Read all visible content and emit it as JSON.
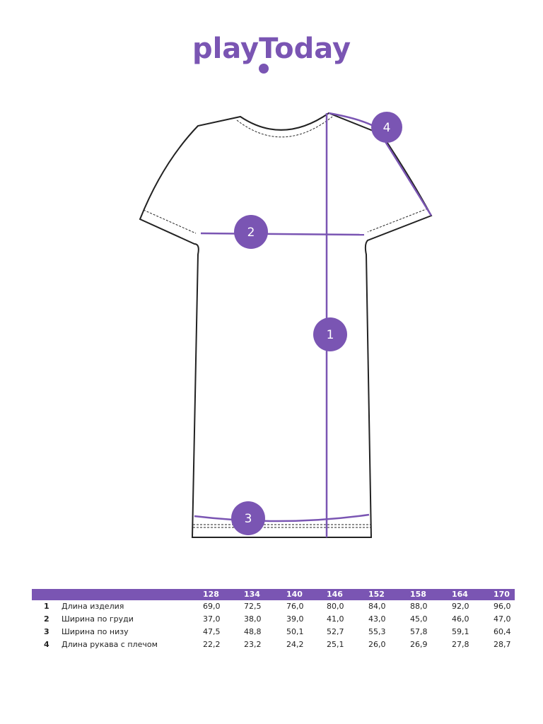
{
  "brand": {
    "name": "playToday",
    "color": "#7a55b3"
  },
  "markers": [
    "1",
    "2",
    "3",
    "4"
  ],
  "table": {
    "sizes": [
      "128",
      "134",
      "140",
      "146",
      "152",
      "158",
      "164",
      "170"
    ],
    "rows": [
      {
        "num": "1",
        "label": "Длина изделия",
        "values": [
          "69,0",
          "72,5",
          "76,0",
          "80,0",
          "84,0",
          "88,0",
          "92,0",
          "96,0"
        ]
      },
      {
        "num": "2",
        "label": "Ширина по груди",
        "values": [
          "37,0",
          "38,0",
          "39,0",
          "41,0",
          "43,0",
          "45,0",
          "46,0",
          "47,0"
        ]
      },
      {
        "num": "3",
        "label": "Ширина по низу",
        "values": [
          "47,5",
          "48,8",
          "50,1",
          "52,7",
          "55,3",
          "57,8",
          "59,1",
          "60,4"
        ]
      },
      {
        "num": "4",
        "label": "Длина рукава с плечом",
        "values": [
          "22,2",
          "23,2",
          "24,2",
          "25,1",
          "26,0",
          "26,9",
          "27,8",
          "28,7"
        ]
      }
    ]
  }
}
